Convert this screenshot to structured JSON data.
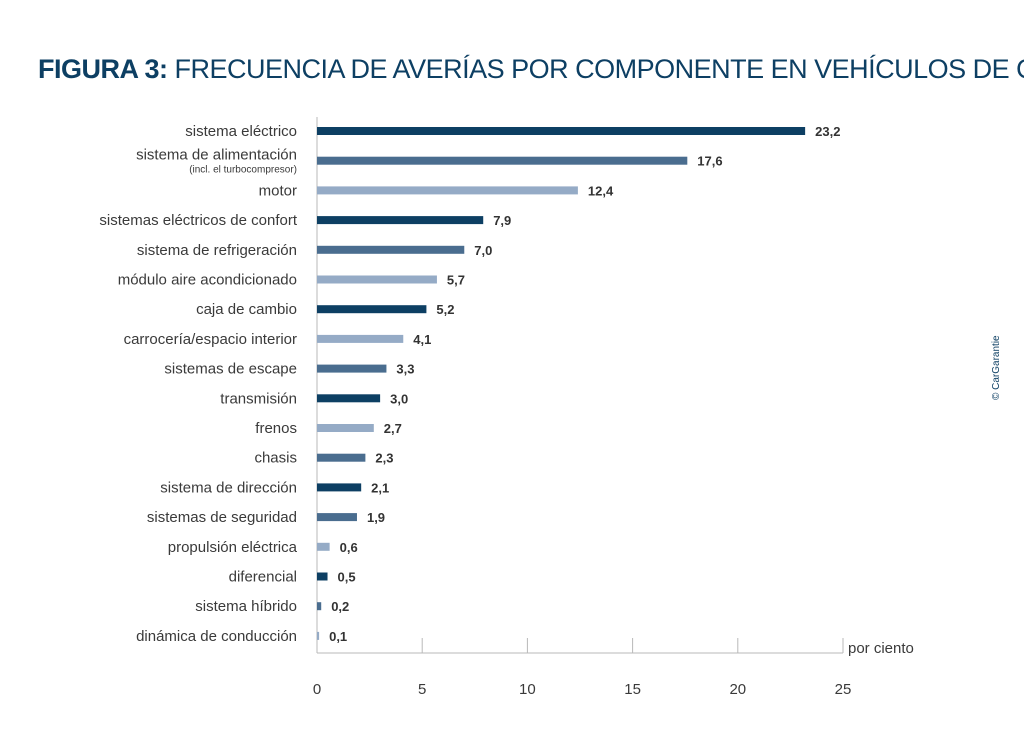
{
  "chart_data": {
    "type": "bar",
    "orientation": "horizontal",
    "title_bold": "FIGURA 3:",
    "title": "FRECUENCIA DE AVERÍAS POR COMPONENTE EN VEHÍCULOS DE OCASIÓN",
    "xlabel": "por ciento",
    "xlim": [
      0,
      25
    ],
    "xticks": [
      0,
      5,
      10,
      15,
      20,
      25
    ],
    "grid": false,
    "credit": "© CarGarantie",
    "categories": [
      {
        "label": "sistema eléctrico",
        "sub": ""
      },
      {
        "label": "sistema de alimentación",
        "sub": "(incl. el turbocompresor)"
      },
      {
        "label": "motor",
        "sub": ""
      },
      {
        "label": "sistemas eléctricos de confort",
        "sub": ""
      },
      {
        "label": "sistema de refrigeración",
        "sub": ""
      },
      {
        "label": "módulo aire acondicionado",
        "sub": ""
      },
      {
        "label": "caja de cambio",
        "sub": ""
      },
      {
        "label": "carrocería/espacio interior",
        "sub": ""
      },
      {
        "label": "sistemas de escape",
        "sub": ""
      },
      {
        "label": "transmisión",
        "sub": ""
      },
      {
        "label": "frenos",
        "sub": ""
      },
      {
        "label": "chasis",
        "sub": ""
      },
      {
        "label": "sistema de dirección",
        "sub": ""
      },
      {
        "label": "sistemas de seguridad",
        "sub": ""
      },
      {
        "label": "propulsión eléctrica",
        "sub": ""
      },
      {
        "label": "diferencial",
        "sub": ""
      },
      {
        "label": "sistema híbrido",
        "sub": ""
      },
      {
        "label": "dinámica de conducción",
        "sub": ""
      }
    ],
    "values": [
      23.2,
      17.6,
      12.4,
      7.9,
      7.0,
      5.7,
      5.2,
      4.1,
      3.3,
      3.0,
      2.7,
      2.3,
      2.1,
      1.9,
      0.6,
      0.5,
      0.2,
      0.1
    ],
    "value_labels": [
      "23,2",
      "17,6",
      "12,4",
      "7,9",
      "7,0",
      "5,7",
      "5,2",
      "4,1",
      "3,3",
      "3,0",
      "2,7",
      "2,3",
      "2,1",
      "1,9",
      "0,6",
      "0,5",
      "0,2",
      "0,1"
    ],
    "bar_color_keys": [
      "dark",
      "mid",
      "light",
      "dark",
      "mid",
      "light",
      "dark",
      "light",
      "mid",
      "dark",
      "light",
      "mid",
      "dark",
      "mid",
      "light",
      "dark",
      "mid",
      "light"
    ],
    "colors": {
      "dark": "#0d3f63",
      "mid": "#4a6d8f",
      "light": "#95abc6",
      "title": "#0d3f63",
      "text": "#3a3a3a",
      "axis": "#b8b8b8"
    }
  }
}
